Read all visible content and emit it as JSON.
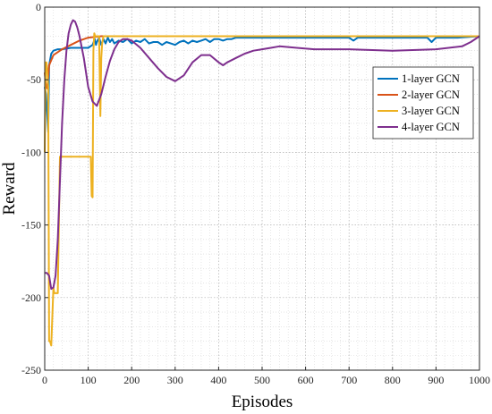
{
  "chart_data": {
    "type": "line",
    "title": "",
    "xlabel": "Episodes",
    "ylabel": "Reward",
    "xlim": [
      0,
      1000
    ],
    "ylim": [
      -250,
      0
    ],
    "xticks": [
      0,
      100,
      200,
      300,
      400,
      500,
      600,
      700,
      800,
      900,
      1000
    ],
    "yticks": [
      0,
      -50,
      -100,
      -150,
      -200,
      -250
    ],
    "grid": true,
    "legend_position": "top-right",
    "series": [
      {
        "name": "1-layer GCN",
        "color": "#0072BD",
        "x": [
          0,
          3,
          5,
          8,
          10,
          15,
          20,
          30,
          40,
          60,
          80,
          100,
          110,
          115,
          118,
          120,
          125,
          130,
          135,
          140,
          145,
          150,
          155,
          160,
          170,
          180,
          190,
          200,
          210,
          220,
          230,
          240,
          250,
          260,
          270,
          280,
          290,
          300,
          310,
          320,
          330,
          340,
          350,
          360,
          370,
          380,
          390,
          400,
          410,
          420,
          430,
          440,
          450,
          500,
          550,
          600,
          650,
          700,
          710,
          720,
          750,
          800,
          850,
          880,
          890,
          900,
          950,
          1000
        ],
        "y": [
          -55,
          -60,
          -70,
          -86,
          -40,
          -32,
          -30,
          -29,
          -29,
          -28,
          -28,
          -28,
          -26,
          -22,
          -26,
          -24,
          -21,
          -26,
          -22,
          -25,
          -21,
          -24,
          -22,
          -25,
          -23,
          -24,
          -22,
          -25,
          -23,
          -24,
          -22,
          -25,
          -24,
          -24,
          -26,
          -24,
          -25,
          -26,
          -24,
          -23,
          -25,
          -23,
          -24,
          -23,
          -22,
          -24,
          -22,
          -22,
          -23,
          -22,
          -22,
          -21,
          -21,
          -21,
          -21,
          -21,
          -21,
          -21,
          -23,
          -21,
          -21,
          -21,
          -21,
          -21,
          -24,
          -21,
          -21,
          -20
        ]
      },
      {
        "name": "2-layer GCN",
        "color": "#D95319",
        "x": [
          0,
          3,
          6,
          10,
          20,
          30,
          40,
          60,
          80,
          100,
          130,
          200,
          300,
          500,
          700,
          1000
        ],
        "y": [
          -45,
          -55,
          -56,
          -40,
          -33,
          -31,
          -29,
          -26,
          -23,
          -21,
          -20,
          -20,
          -20,
          -20,
          -20,
          -20
        ],
        "tail_note": "line starts near -45 at episode 0"
      },
      {
        "name": "3-layer GCN",
        "color": "#EDB120",
        "x": [
          0,
          2,
          4,
          6,
          8,
          10,
          12,
          15,
          20,
          22,
          25,
          30,
          35,
          40,
          60,
          80,
          100,
          106,
          108,
          110,
          112,
          114,
          116,
          120,
          125,
          128,
          130,
          132,
          135,
          140,
          200,
          300,
          500,
          700,
          1000
        ],
        "y": [
          -100,
          -38,
          -38,
          -45,
          -55,
          -230,
          -230,
          -233,
          -193,
          -197,
          -197,
          -197,
          -103,
          -103,
          -103,
          -103,
          -103,
          -103,
          -130,
          -131,
          -30,
          -18,
          -20,
          -20,
          -20,
          -75,
          -35,
          -25,
          -20,
          -20,
          -20,
          -20,
          -20,
          -20,
          -20
        ]
      },
      {
        "name": "4-layer GCN",
        "color": "#7E2F8E",
        "x": [
          0,
          5,
          10,
          15,
          20,
          25,
          30,
          35,
          40,
          45,
          50,
          55,
          60,
          65,
          70,
          75,
          80,
          90,
          100,
          110,
          120,
          130,
          140,
          150,
          160,
          170,
          180,
          190,
          200,
          220,
          240,
          260,
          280,
          300,
          320,
          340,
          360,
          380,
          400,
          410,
          420,
          440,
          460,
          480,
          500,
          520,
          540,
          580,
          620,
          700,
          800,
          900,
          960,
          980,
          1000
        ],
        "y": [
          -183,
          -183,
          -185,
          -194,
          -193,
          -185,
          -160,
          -120,
          -80,
          -50,
          -30,
          -18,
          -12,
          -9,
          -10,
          -14,
          -20,
          -35,
          -55,
          -65,
          -68,
          -60,
          -48,
          -37,
          -29,
          -24,
          -22,
          -22,
          -23,
          -28,
          -35,
          -42,
          -48,
          -51,
          -47,
          -38,
          -33,
          -33,
          -38,
          -40,
          -38,
          -35,
          -32,
          -30,
          -29,
          -28,
          -27,
          -28,
          -29,
          -29,
          -30,
          -29,
          -27,
          -24,
          -20
        ]
      }
    ]
  }
}
